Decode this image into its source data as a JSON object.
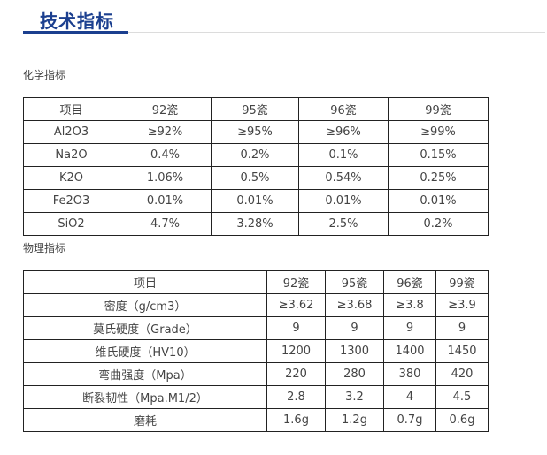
{
  "header": {
    "title": "技术指标"
  },
  "chemical": {
    "label": "化学指标",
    "columns": [
      "项目",
      "92瓷",
      "95瓷",
      "96瓷",
      "99瓷"
    ],
    "rows": [
      [
        "Al2O3",
        "≥92%",
        "≥95%",
        "≥96%",
        "≥99%"
      ],
      [
        "Na2O",
        "0.4%",
        "0.2%",
        "0.1%",
        "0.15%"
      ],
      [
        "K2O",
        "1.06%",
        "0.5%",
        "0.54%",
        "0.25%"
      ],
      [
        "Fe2O3",
        "0.01%",
        "0.01%",
        "0.01%",
        "0.01%"
      ],
      [
        "SiO2",
        "4.7%",
        "3.28%",
        "2.5%",
        "0.2%"
      ]
    ]
  },
  "physical": {
    "label": "物理指标",
    "columns": [
      "项目",
      "92瓷",
      "95瓷",
      "96瓷",
      "99瓷"
    ],
    "rows": [
      [
        "密度（g/cm3）",
        "≥3.62",
        "≥3.68",
        "≥3.8",
        "≥3.9"
      ],
      [
        "莫氏硬度（Grade）",
        "9",
        "9",
        "9",
        "9"
      ],
      [
        "维氏硬度（HV10）",
        "1200",
        "1300",
        "1400",
        "1450"
      ],
      [
        "弯曲强度（Mpa）",
        "220",
        "280",
        "380",
        "420"
      ],
      [
        "断裂韧性（Mpa.M1/2）",
        "2.8",
        "3.2",
        "4",
        "4.5"
      ],
      [
        "磨耗",
        "1.6g",
        "1.2g",
        "0.7g",
        "0.6g"
      ]
    ]
  }
}
